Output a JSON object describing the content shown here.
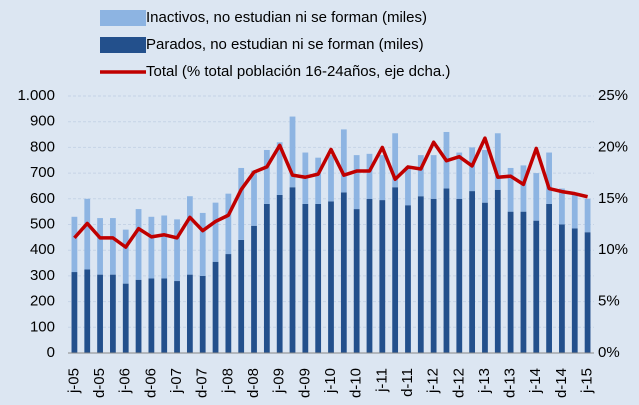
{
  "chart_data": {
    "type": "bar_line",
    "categories": [
      "j-05",
      null,
      "d-05",
      null,
      "j-06",
      null,
      "d-06",
      null,
      "j-07",
      null,
      "d-07",
      null,
      "j-08",
      null,
      "d-08",
      null,
      "j-09",
      null,
      "d-09",
      null,
      "j-10",
      null,
      "d-10",
      null,
      "j-11",
      null,
      "d-11",
      null,
      "j-12",
      null,
      "d-12",
      null,
      "j-13",
      null,
      "d-13",
      null,
      "j-14",
      null,
      "d-14",
      null,
      "j-15"
    ],
    "series": [
      {
        "name": "Inactivos, no estudian ni se forman (miles)",
        "color": "#8db4e2",
        "stack": true,
        "values": [
          215,
          275,
          220,
          220,
          210,
          275,
          240,
          245,
          240,
          305,
          245,
          230,
          235,
          280,
          215,
          210,
          205,
          275,
          200,
          180,
          180,
          245,
          210,
          175,
          175,
          210,
          150,
          160,
          170,
          220,
          180,
          170,
          205,
          220,
          170,
          180,
          185,
          200,
          140,
          135,
          130
        ]
      },
      {
        "name": "Parados, no estudian ni se forman (miles)",
        "color": "#23508c",
        "stack": true,
        "values": [
          315,
          325,
          305,
          305,
          270,
          285,
          290,
          290,
          280,
          305,
          300,
          355,
          385,
          440,
          495,
          580,
          615,
          645,
          580,
          580,
          590,
          625,
          560,
          600,
          595,
          645,
          575,
          610,
          600,
          640,
          600,
          630,
          585,
          635,
          550,
          550,
          515,
          580,
          500,
          485,
          470
        ]
      },
      {
        "name": "Total (% total población 16-24años, eje dcha.)",
        "color": "#c00000",
        "axis": "y2",
        "type": "line",
        "values": [
          11.2,
          12.6,
          11.2,
          11.2,
          10.3,
          12.1,
          11.3,
          11.5,
          11.2,
          13.2,
          11.9,
          12.8,
          13.4,
          15.9,
          17.6,
          18.1,
          20.2,
          17.3,
          17.1,
          17.4,
          19.8,
          17.3,
          17.7,
          17.7,
          20.0,
          16.9,
          18.1,
          17.9,
          20.5,
          18.7,
          19.1,
          18.2,
          20.9,
          17.1,
          17.2,
          16.4,
          19.9,
          16.0,
          15.7,
          15.5,
          15.2
        ]
      }
    ],
    "ylim": [
      0,
      1000
    ],
    "yticks": [
      0,
      100,
      200,
      300,
      400,
      500,
      600,
      700,
      800,
      900,
      {
        "value": 1000,
        "label": "1.000"
      }
    ],
    "y2lim": [
      0,
      25
    ],
    "y2ticks": [
      {
        "value": 0,
        "label": "0%"
      },
      {
        "value": 5,
        "label": "5%"
      },
      {
        "value": 10,
        "label": "10%"
      },
      {
        "value": 15,
        "label": "15%"
      },
      {
        "value": 20,
        "label": "20%"
      },
      {
        "value": 25,
        "label": "25%"
      }
    ],
    "grid": true,
    "legend": "top"
  }
}
